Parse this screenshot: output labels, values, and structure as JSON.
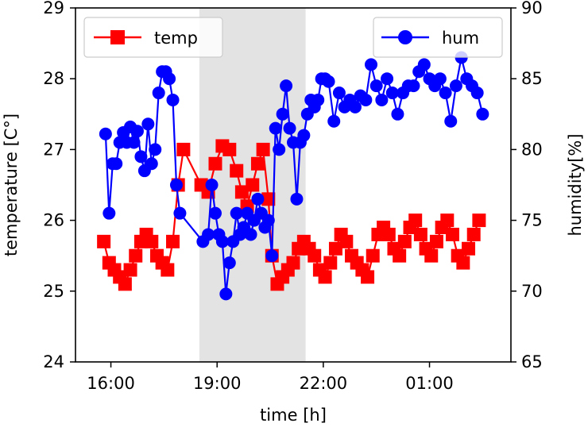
{
  "chart_data": {
    "type": "line",
    "xlabel": "time [h]",
    "ylabel": "temperature [C°]",
    "ylabel_right": "humidity[%]",
    "x_unit": "hours (values beyond 24 are times after midnight)",
    "xlim": [
      15.0,
      27.3
    ],
    "ylim": [
      24,
      29
    ],
    "ylim_right": [
      65,
      90
    ],
    "x_ticks": [
      16,
      19,
      22,
      25
    ],
    "x_tick_labels": [
      "16:00",
      "19:00",
      "22:00",
      "01:00"
    ],
    "y_ticks": [
      24,
      25,
      26,
      27,
      28,
      29
    ],
    "y_tick_labels": [
      "24",
      "25",
      "26",
      "27",
      "28",
      "29"
    ],
    "y_ticks_right": [
      65,
      70,
      75,
      80,
      85,
      90
    ],
    "y_tick_labels_right": [
      "65",
      "70",
      "75",
      "80",
      "85",
      "90"
    ],
    "shaded_span": [
      18.5,
      21.5
    ],
    "colors": {
      "temp": "#ff0000",
      "hum": "#0000ff",
      "shade": "#d9d9d9"
    },
    "legend": [
      {
        "name": "temp",
        "placement": "upper left"
      },
      {
        "name": "hum",
        "placement": "upper right"
      }
    ],
    "series": [
      {
        "name": "temp",
        "axis": "left",
        "marker": "square",
        "x": [
          15.8,
          15.95,
          16.1,
          16.25,
          16.4,
          16.55,
          16.7,
          16.85,
          17.0,
          17.15,
          17.3,
          17.45,
          17.6,
          17.75,
          17.9,
          18.05,
          18.55,
          18.75,
          18.95,
          19.15,
          19.35,
          19.55,
          19.7,
          19.85,
          20.0,
          20.15,
          20.3,
          20.45,
          20.55,
          20.7,
          20.85,
          21.0,
          21.15,
          21.3,
          21.45,
          21.6,
          21.75,
          21.9,
          22.05,
          22.2,
          22.35,
          22.5,
          22.65,
          22.8,
          22.95,
          23.1,
          23.25,
          23.4,
          23.55,
          23.7,
          23.85,
          24.0,
          24.15,
          24.3,
          24.45,
          24.6,
          24.75,
          24.9,
          25.05,
          25.2,
          25.35,
          25.5,
          25.65,
          25.8,
          25.95,
          26.1,
          26.25,
          26.4
        ],
        "values": [
          25.7,
          25.4,
          25.3,
          25.2,
          25.1,
          25.3,
          25.5,
          25.7,
          25.8,
          25.7,
          25.5,
          25.4,
          25.3,
          25.7,
          26.5,
          27.0,
          26.5,
          26.4,
          26.8,
          27.05,
          27.0,
          26.7,
          26.4,
          26.2,
          26.5,
          26.8,
          27.0,
          26.3,
          25.5,
          25.1,
          25.2,
          25.3,
          25.4,
          25.6,
          25.7,
          25.6,
          25.5,
          25.3,
          25.2,
          25.4,
          25.6,
          25.8,
          25.7,
          25.5,
          25.4,
          25.3,
          25.2,
          25.5,
          25.8,
          25.9,
          25.8,
          25.6,
          25.5,
          25.7,
          25.9,
          26.0,
          25.8,
          25.6,
          25.5,
          25.7,
          25.9,
          26.0,
          25.8,
          25.5,
          25.4,
          25.6,
          25.8,
          26.0
        ]
      },
      {
        "name": "hum",
        "axis": "right",
        "marker": "circle",
        "x": [
          15.85,
          15.95,
          16.05,
          16.15,
          16.25,
          16.35,
          16.45,
          16.55,
          16.65,
          16.75,
          16.85,
          16.95,
          17.05,
          17.15,
          17.25,
          17.35,
          17.45,
          17.55,
          17.65,
          17.75,
          17.85,
          17.95,
          18.6,
          18.75,
          18.85,
          18.95,
          19.05,
          19.15,
          19.25,
          19.35,
          19.45,
          19.55,
          19.65,
          19.75,
          19.85,
          19.95,
          20.05,
          20.15,
          20.25,
          20.35,
          20.45,
          20.55,
          20.65,
          20.75,
          20.85,
          20.95,
          21.05,
          21.15,
          21.25,
          21.35,
          21.45,
          21.55,
          21.65,
          21.75,
          21.85,
          21.95,
          22.05,
          22.15,
          22.3,
          22.45,
          22.6,
          22.75,
          22.9,
          23.05,
          23.2,
          23.35,
          23.5,
          23.65,
          23.8,
          23.95,
          24.1,
          24.25,
          24.4,
          24.55,
          24.7,
          24.85,
          25.0,
          25.15,
          25.3,
          25.45,
          25.6,
          25.75,
          25.9,
          26.05,
          26.2,
          26.35,
          26.5
        ],
        "values": [
          81.1,
          75.5,
          79.0,
          79.0,
          80.5,
          81.2,
          80.5,
          81.6,
          80.5,
          81.3,
          79.5,
          78.5,
          81.8,
          79.0,
          80.0,
          84.0,
          85.5,
          85.5,
          85.0,
          83.5,
          77.5,
          75.5,
          73.5,
          74.0,
          77.5,
          75.5,
          74.0,
          73.5,
          69.8,
          72.0,
          73.5,
          75.5,
          74.0,
          74.5,
          75.5,
          74.0,
          75.0,
          76.5,
          75.5,
          74.5,
          75.0,
          72.5,
          81.5,
          80.0,
          82.5,
          84.5,
          81.5,
          80.5,
          76.5,
          80.5,
          81.0,
          82.5,
          83.5,
          83.0,
          83.5,
          85.0,
          85.0,
          84.8,
          82.0,
          84.0,
          83.0,
          83.5,
          83.0,
          83.8,
          83.5,
          86.0,
          84.5,
          83.5,
          85.0,
          84.0,
          82.5,
          84.0,
          84.5,
          84.5,
          85.5,
          86.0,
          85.0,
          84.5,
          85.0,
          84.0,
          82.0,
          84.5,
          86.5,
          85.0,
          84.5,
          84.0,
          82.5
        ]
      }
    ]
  }
}
